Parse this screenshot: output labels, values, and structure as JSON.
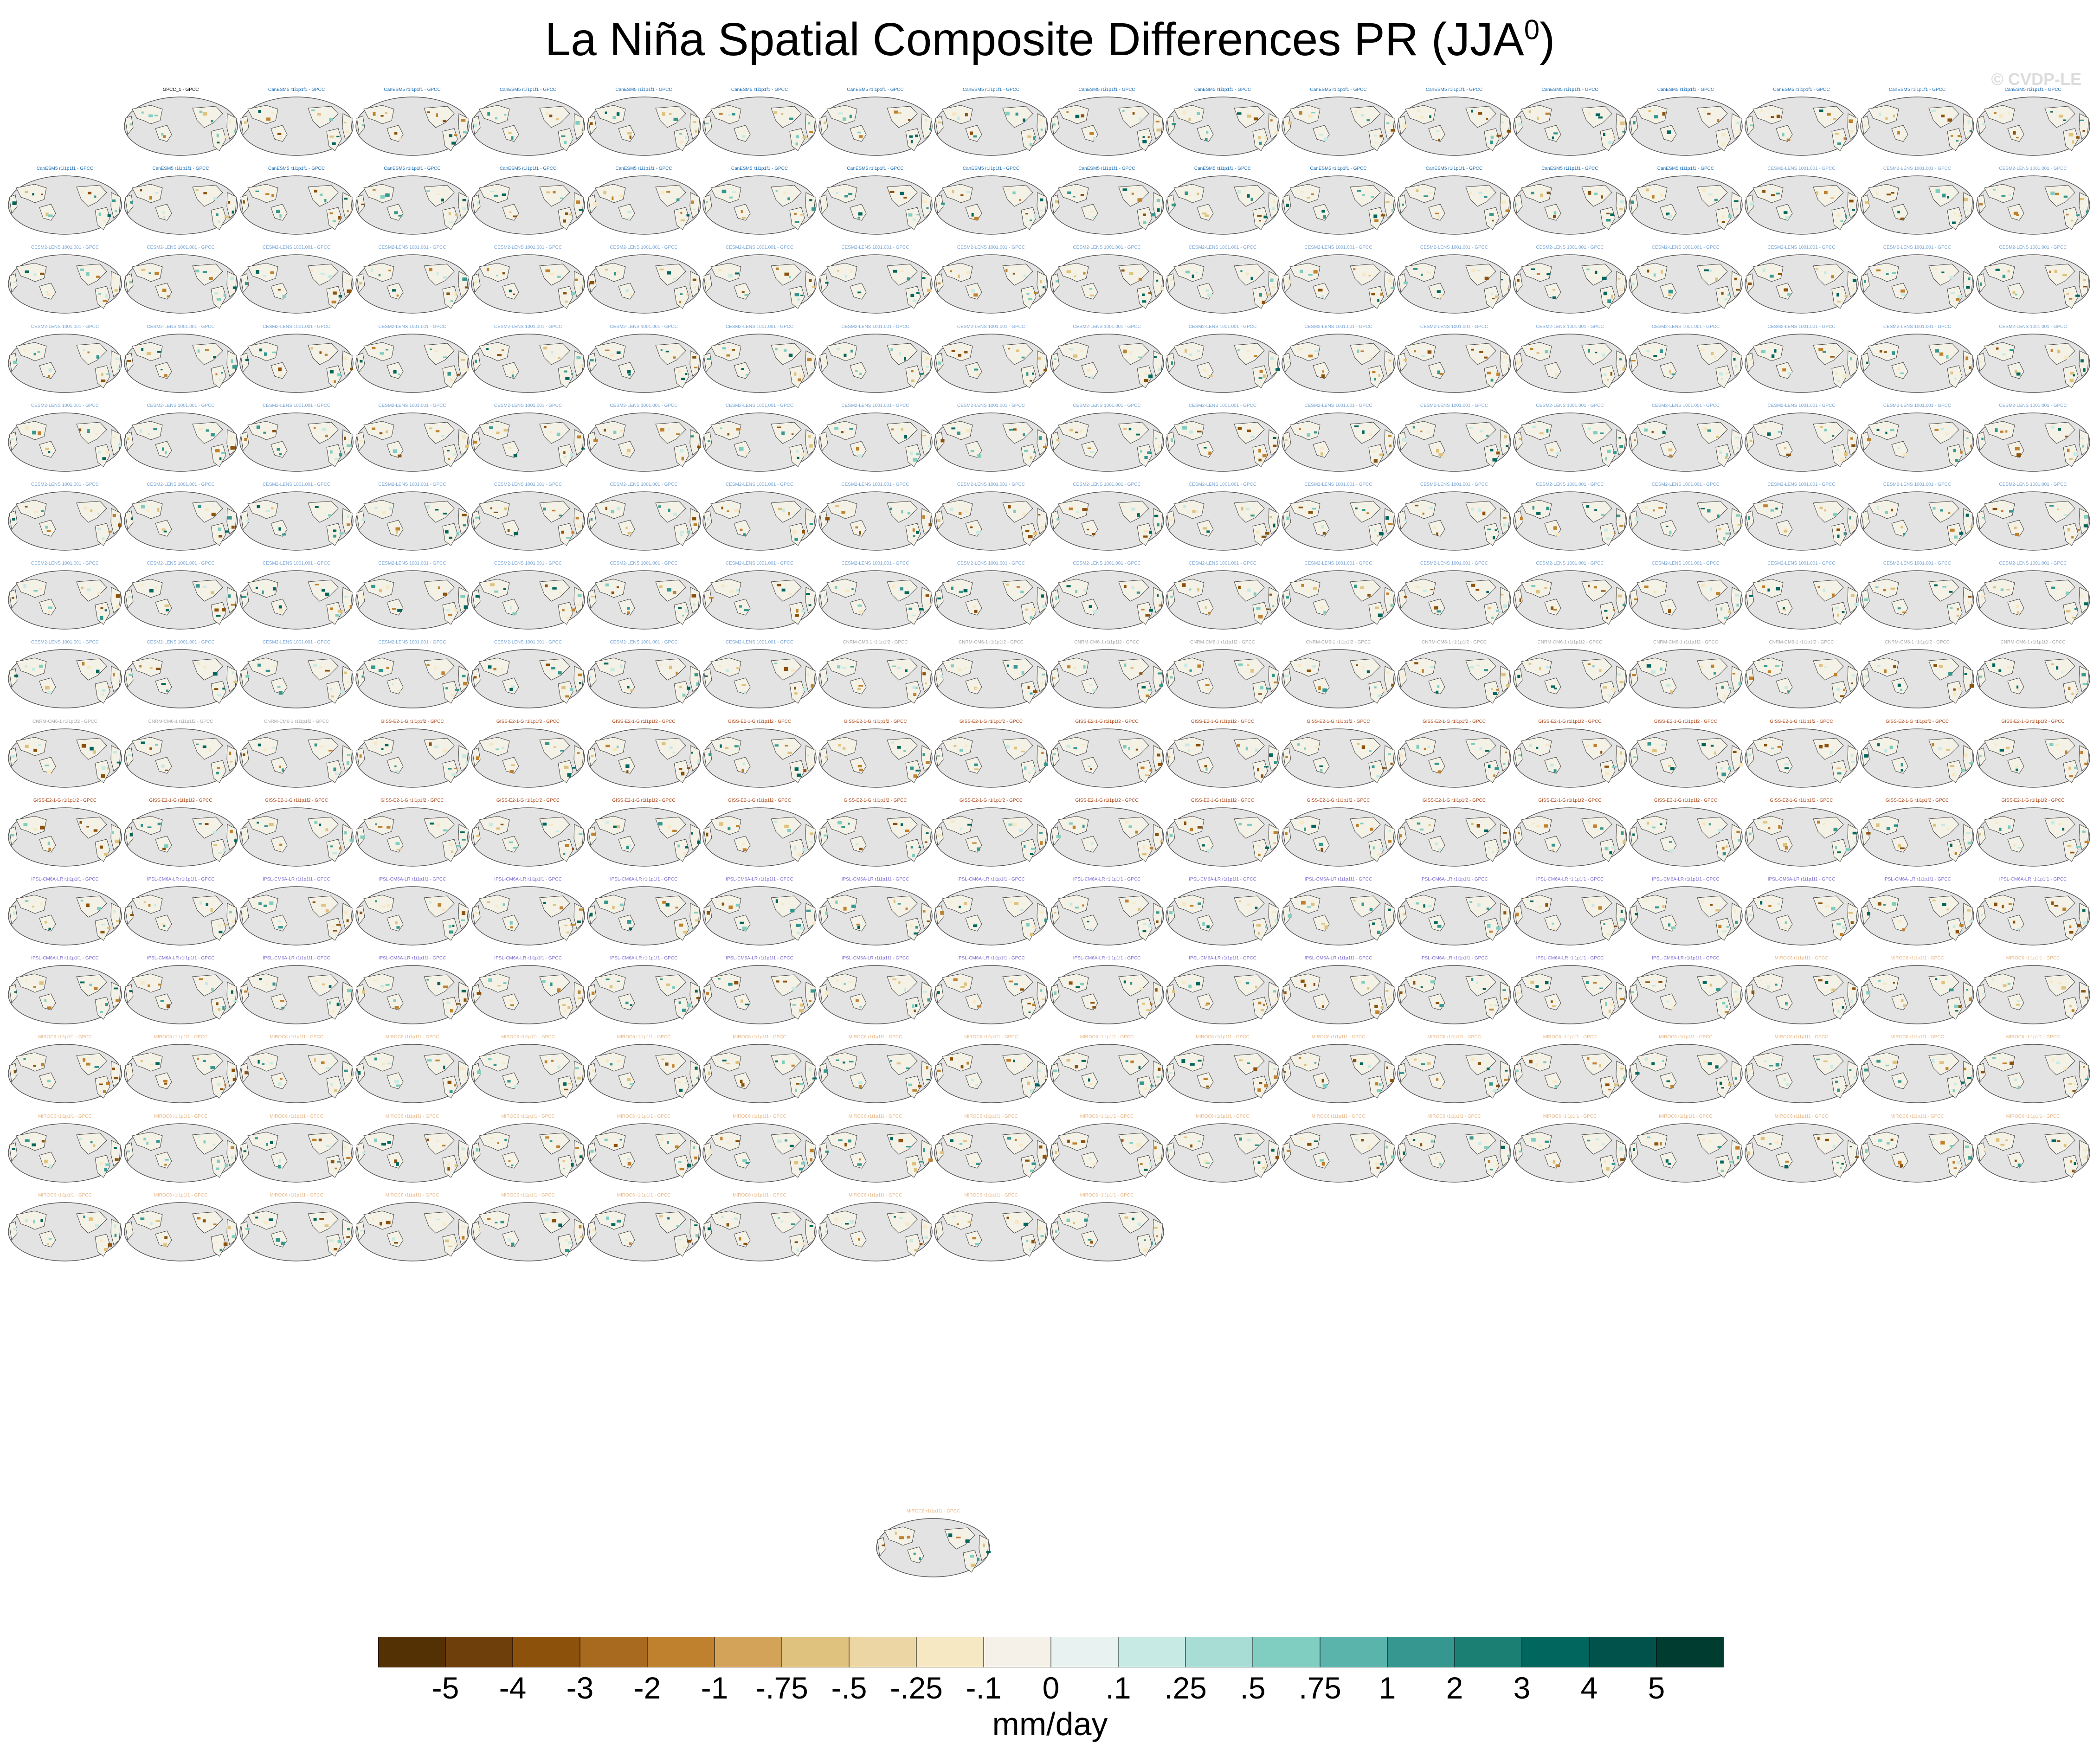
{
  "title": {
    "main": "La Niña Spatial Composite Differences PR (JJA",
    "superscript": "0",
    "suffix": ")"
  },
  "watermark": "© CVDP-LE",
  "chart_data": {
    "type": "heatmap",
    "panel_layout": {
      "columns": 18,
      "rows": 19
    },
    "panels": [
      {
        "title": "GPCC_1 - GPCC",
        "color": "#000000",
        "row": 0,
        "col": 1
      },
      {
        "title": "CanESM5 r1i1p1f1 - GPCC",
        "color": "#1f6fb5",
        "count": 31
      },
      {
        "title": "CESM2-LENS 1001.001 - GPCC",
        "color": "#7aa6d6",
        "count": 100
      },
      {
        "title": "CNRM-CM6-1 r1i1p1f2 - GPCC",
        "color": "#a7a7a7",
        "count": 14
      },
      {
        "title": "GISS-E2-1-G r1i1p1f2 - GPCC",
        "color": "#b04a1b",
        "count": 33
      },
      {
        "title": "IPSL-CM6A-LR r1i1p1f1 - GPCC",
        "color": "#7b6fd0",
        "count": 33
      },
      {
        "title": "MIROC6 r1i1p1f1 - GPCC",
        "color": "#e8b888",
        "count": 50
      }
    ],
    "colorbar": {
      "units": "mm/day",
      "tick_labels": [
        "-5",
        "-4",
        "-3",
        "-2",
        "-1",
        "-.75",
        "-.5",
        "-.25",
        "-.1",
        "0",
        ".1",
        ".25",
        ".5",
        ".75",
        "1",
        "2",
        "3",
        "4",
        "5"
      ],
      "colors": [
        "#543005",
        "#6f3f0b",
        "#8c510a",
        "#a86a1f",
        "#bf812d",
        "#d3a35a",
        "#dfc27d",
        "#ecd7a4",
        "#f6e8c3",
        "#f5f1e8",
        "#e8f3f1",
        "#c7eae5",
        "#a8ddd5",
        "#80cdc1",
        "#5ab4ac",
        "#35978f",
        "#1c7f73",
        "#01665e",
        "#01524a",
        "#003c30"
      ]
    }
  }
}
